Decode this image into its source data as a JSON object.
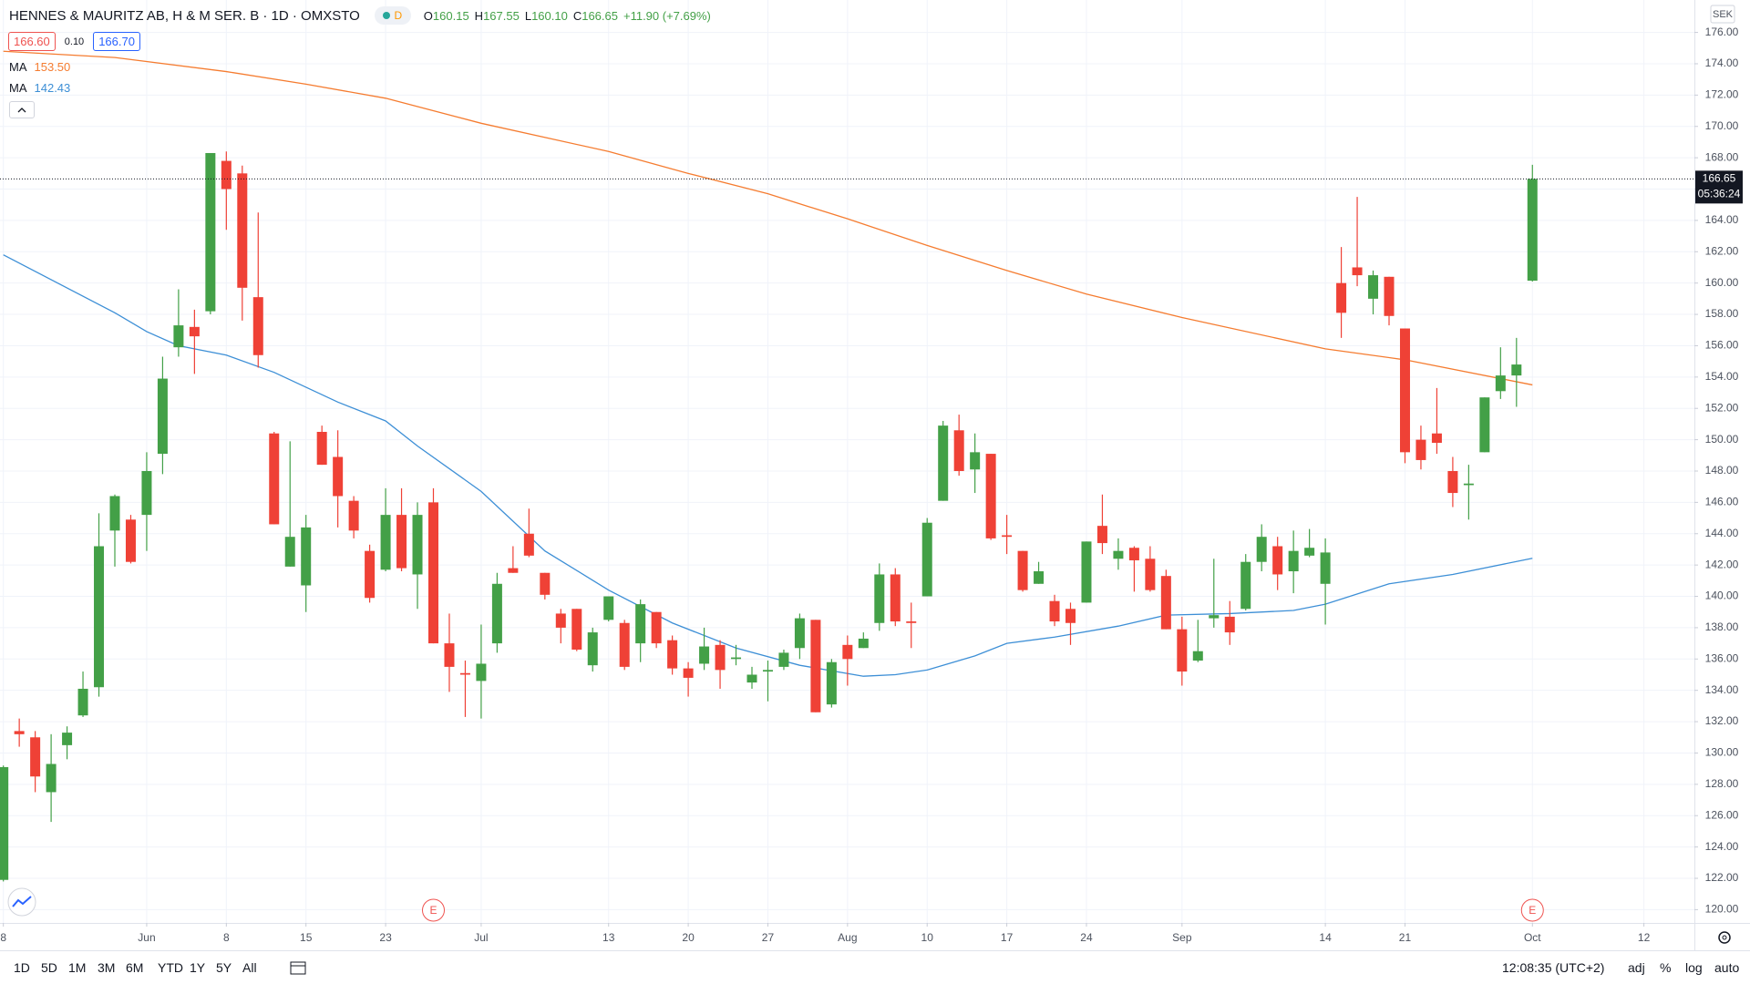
{
  "legend": {
    "symbol": "HENNES & MAURITZ AB, H & M SER. B · 1D · OMXSTO",
    "interval_badge": "D",
    "ohlc": [
      {
        "key": "O",
        "value": "160.15"
      },
      {
        "key": "H",
        "value": "167.55"
      },
      {
        "key": "L",
        "value": "160.10"
      },
      {
        "key": "C",
        "value": "166.65"
      }
    ],
    "change": "+11.90 (+7.69%)",
    "bid": "166.60",
    "spread": "0.10",
    "ask": "166.70"
  },
  "chart_data": {
    "type": "candlestick",
    "up_color": "#43a047",
    "down_color": "#ef4136",
    "grid": true,
    "categories": [
      null,
      null,
      null,
      null,
      null,
      null,
      null,
      null,
      null,
      null,
      null,
      null,
      null,
      null,
      null,
      null,
      null,
      null,
      null,
      null,
      null,
      null,
      null,
      null,
      null,
      null,
      null,
      null,
      null,
      null,
      null,
      null,
      null,
      null,
      null,
      null,
      null,
      null,
      null,
      null,
      null,
      null,
      null,
      null,
      null,
      null,
      null,
      null,
      null,
      null,
      null,
      null,
      null,
      null,
      null,
      null,
      null,
      null,
      null,
      null,
      null,
      null,
      null,
      null,
      null,
      null,
      null,
      null,
      null,
      null,
      null,
      null,
      null,
      null,
      null,
      null,
      null,
      null,
      null,
      null,
      null,
      null,
      null,
      null,
      null,
      null,
      null,
      null,
      null,
      null,
      null,
      null,
      null,
      null,
      null,
      null,
      null
    ],
    "open": [
      121.9,
      131.4,
      131.0,
      127.5,
      130.5,
      132.4,
      134.2,
      144.2,
      144.9,
      145.2,
      149.1,
      155.9,
      157.2,
      158.2,
      167.8,
      167.0,
      159.1,
      150.4,
      141.9,
      140.7,
      150.5,
      148.9,
      146.1,
      142.9,
      141.7,
      145.2,
      141.4,
      146.0,
      137.0,
      135.1,
      134.6,
      137.0,
      141.8,
      144.0,
      141.5,
      138.9,
      139.2,
      135.6,
      138.5,
      138.3,
      137.0,
      139.0,
      137.2,
      135.4,
      135.7,
      136.9,
      136.0,
      134.5,
      135.2,
      135.5,
      136.7,
      138.5,
      133.1,
      136.9,
      136.7,
      138.3,
      141.4,
      138.4,
      140.0,
      146.1,
      150.6,
      148.1,
      149.1,
      143.9,
      142.9,
      140.8,
      139.7,
      139.2,
      139.6,
      144.5,
      142.4,
      143.1,
      142.4,
      141.3,
      137.9,
      135.9,
      138.6,
      138.7,
      139.2,
      142.2,
      143.2,
      141.6,
      142.6,
      140.8,
      160.0,
      161.0,
      159.0,
      160.4,
      157.1,
      150.0,
      150.4,
      148.0,
      147.1,
      149.2,
      153.1,
      154.1,
      160.15
    ],
    "high": [
      129.2,
      132.2,
      131.4,
      131.2,
      131.7,
      135.2,
      145.3,
      146.5,
      145.2,
      149.2,
      155.3,
      159.6,
      158.3,
      168.3,
      168.4,
      167.5,
      164.5,
      150.5,
      149.9,
      145.2,
      150.9,
      150.6,
      146.4,
      143.3,
      146.9,
      146.9,
      146.0,
      146.9,
      138.9,
      135.9,
      138.2,
      141.5,
      143.2,
      145.6,
      141.5,
      139.2,
      139.2,
      138.0,
      140.0,
      138.5,
      139.8,
      139.0,
      137.5,
      135.8,
      138.0,
      137.2,
      136.9,
      135.5,
      135.9,
      136.6,
      138.9,
      138.5,
      136.0,
      137.5,
      137.7,
      142.1,
      141.8,
      139.6,
      145.0,
      151.2,
      151.6,
      150.4,
      149.1,
      145.2,
      142.9,
      142.2,
      140.1,
      139.6,
      143.5,
      146.5,
      143.7,
      143.2,
      143.2,
      141.7,
      138.7,
      138.5,
      142.4,
      139.7,
      142.7,
      144.6,
      143.8,
      144.2,
      144.3,
      143.7,
      162.3,
      165.5,
      160.8,
      160.4,
      157.1,
      150.9,
      153.3,
      148.9,
      148.4,
      152.7,
      155.9,
      156.5,
      167.55
    ],
    "low": [
      121.8,
      130.4,
      127.5,
      125.6,
      129.6,
      132.3,
      133.6,
      141.9,
      142.1,
      142.9,
      147.8,
      155.3,
      154.2,
      158.0,
      163.4,
      157.6,
      154.6,
      144.6,
      141.9,
      139.0,
      148.4,
      144.4,
      143.7,
      139.6,
      141.6,
      141.6,
      139.2,
      137.0,
      133.9,
      132.3,
      132.2,
      136.4,
      141.5,
      142.5,
      139.8,
      137.0,
      136.5,
      135.2,
      138.4,
      135.3,
      135.8,
      136.7,
      135.0,
      133.6,
      135.3,
      134.1,
      135.6,
      134.1,
      133.3,
      135.3,
      136.0,
      132.6,
      132.9,
      134.3,
      136.7,
      137.8,
      138.1,
      136.7,
      140.0,
      146.1,
      147.7,
      146.6,
      143.6,
      142.7,
      140.3,
      140.8,
      138.1,
      136.9,
      139.6,
      142.7,
      141.7,
      140.3,
      140.3,
      137.9,
      134.3,
      135.8,
      138.0,
      136.9,
      139.1,
      141.6,
      140.4,
      140.2,
      142.5,
      138.2,
      156.5,
      159.8,
      158.0,
      157.3,
      148.5,
      148.1,
      149.1,
      145.7,
      144.9,
      149.2,
      152.6,
      152.1,
      160.1
    ],
    "close": [
      129.1,
      131.2,
      128.5,
      129.3,
      131.3,
      134.1,
      143.2,
      146.4,
      142.2,
      148.0,
      153.9,
      157.3,
      156.6,
      168.3,
      166.0,
      159.7,
      155.4,
      144.6,
      143.8,
      144.4,
      148.4,
      146.4,
      144.2,
      139.9,
      145.2,
      141.8,
      145.2,
      137.0,
      135.5,
      135.0,
      135.7,
      140.8,
      141.5,
      142.6,
      140.1,
      138.0,
      136.6,
      137.7,
      140.0,
      135.5,
      139.5,
      137.0,
      135.4,
      134.8,
      136.8,
      135.3,
      136.1,
      135.0,
      135.3,
      136.4,
      138.6,
      132.6,
      135.8,
      136.0,
      137.3,
      141.4,
      138.4,
      138.3,
      144.7,
      150.9,
      148.0,
      149.2,
      143.7,
      143.8,
      140.4,
      141.6,
      138.4,
      138.3,
      143.5,
      143.4,
      142.9,
      142.3,
      140.4,
      137.9,
      135.2,
      136.5,
      138.8,
      137.7,
      142.2,
      143.8,
      141.4,
      142.9,
      143.1,
      142.8,
      158.1,
      160.5,
      160.5,
      157.9,
      149.2,
      148.7,
      149.8,
      146.6,
      147.2,
      152.7,
      154.1,
      154.8,
      166.65
    ],
    "indicators": [
      {
        "name": "MA",
        "last": "153.50",
        "color": "#f57c30",
        "x": [
          0,
          7,
          14,
          19,
          24,
          30,
          38,
          43,
          48,
          53,
          58,
          63,
          68,
          74,
          83,
          88,
          96
        ],
        "values": [
          174.8,
          174.4,
          173.5,
          172.7,
          171.8,
          170.2,
          168.4,
          167.0,
          165.7,
          164.1,
          162.4,
          160.8,
          159.3,
          157.8,
          155.8,
          155.1,
          153.5
        ]
      },
      {
        "name": "MA",
        "last": "142.43",
        "color": "#3d8fd6",
        "x": [
          0,
          7,
          9,
          11,
          14,
          17,
          21,
          24,
          26,
          30,
          34,
          38,
          42,
          46,
          50,
          54,
          56,
          58,
          61,
          63,
          66,
          70,
          73,
          77,
          81,
          83,
          87,
          91,
          96
        ],
        "values": [
          161.8,
          158.1,
          156.9,
          156.0,
          155.4,
          154.3,
          152.4,
          151.2,
          149.6,
          146.7,
          142.9,
          140.4,
          138.3,
          136.7,
          135.6,
          134.9,
          135.0,
          135.3,
          136.2,
          137.0,
          137.4,
          138.1,
          138.8,
          138.9,
          139.1,
          139.5,
          140.8,
          141.4,
          142.43
        ]
      }
    ],
    "xlim": [
      -0.21,
      106.17
    ],
    "ylim": [
      119.15,
      178.07
    ],
    "xticks": [
      {
        "value": 0,
        "label": "8"
      },
      {
        "value": 9,
        "label": "Jun"
      },
      {
        "value": 14,
        "label": "8"
      },
      {
        "value": 19,
        "label": "15"
      },
      {
        "value": 24,
        "label": "23"
      },
      {
        "value": 30,
        "label": "Jul"
      },
      {
        "value": 38,
        "label": "13"
      },
      {
        "value": 43,
        "label": "20"
      },
      {
        "value": 48,
        "label": "27"
      },
      {
        "value": 53,
        "label": "Aug"
      },
      {
        "value": 58,
        "label": "10"
      },
      {
        "value": 63,
        "label": "17"
      },
      {
        "value": 68,
        "label": "24"
      },
      {
        "value": 74,
        "label": "Sep"
      },
      {
        "value": 83,
        "label": "14"
      },
      {
        "value": 88,
        "label": "21"
      },
      {
        "value": 96,
        "label": "Oct"
      },
      {
        "value": 103,
        "label": "12"
      }
    ],
    "yticks": [
      {
        "value": 120,
        "label": "120.00"
      },
      {
        "value": 122,
        "label": "122.00"
      },
      {
        "value": 124,
        "label": "124.00"
      },
      {
        "value": 126,
        "label": "126.00"
      },
      {
        "value": 128,
        "label": "128.00"
      },
      {
        "value": 130,
        "label": "130.00"
      },
      {
        "value": 132,
        "label": "132.00"
      },
      {
        "value": 134,
        "label": "134.00"
      },
      {
        "value": 136,
        "label": "136.00"
      },
      {
        "value": 138,
        "label": "138.00"
      },
      {
        "value": 140,
        "label": "140.00"
      },
      {
        "value": 142,
        "label": "142.00"
      },
      {
        "value": 144,
        "label": "144.00"
      },
      {
        "value": 146,
        "label": "146.00"
      },
      {
        "value": 148,
        "label": "148.00"
      },
      {
        "value": 150,
        "label": "150.00"
      },
      {
        "value": 152,
        "label": "152.00"
      },
      {
        "value": 154,
        "label": "154.00"
      },
      {
        "value": 156,
        "label": "156.00"
      },
      {
        "value": 158,
        "label": "158.00"
      },
      {
        "value": 160,
        "label": "160.00"
      },
      {
        "value": 162,
        "label": "162.00"
      },
      {
        "value": 164,
        "label": "164.00"
      },
      {
        "value": 166,
        "label": "166.00"
      },
      {
        "value": 168,
        "label": "168.00"
      },
      {
        "value": 170,
        "label": "170.00"
      },
      {
        "value": 172,
        "label": "172.00"
      },
      {
        "value": 174,
        "label": "174.00"
      },
      {
        "value": 176,
        "label": "176.00"
      }
    ],
    "last_price": {
      "value": 166.65,
      "label": "166.65"
    },
    "countdown": "05:36:24",
    "currency": "SEK",
    "events": [
      {
        "x": 27,
        "label": "E"
      },
      {
        "x": 96,
        "label": "E"
      }
    ]
  },
  "toolbar": {
    "ranges": [
      "1D",
      "5D",
      "1M",
      "3M",
      "6M",
      "YTD",
      "1Y",
      "5Y",
      "All"
    ],
    "clock": "12:08:35 (UTC+2)",
    "options": [
      "adj",
      "%",
      "log",
      "auto"
    ]
  }
}
